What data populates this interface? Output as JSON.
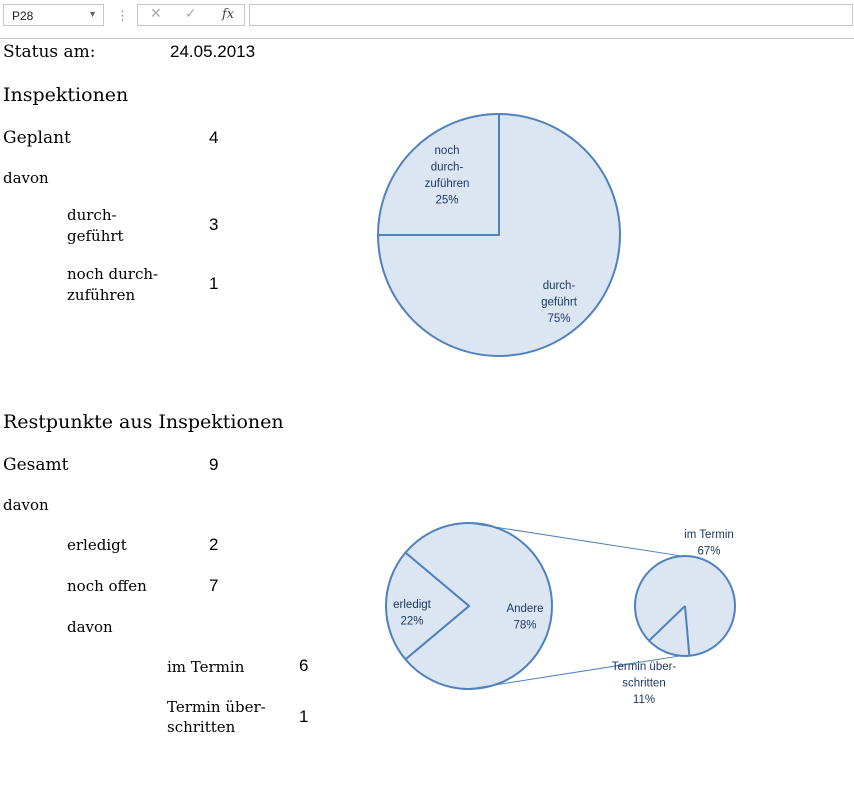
{
  "formula_bar": {
    "cell_ref": "P28",
    "cancel_icon": "✕",
    "enter_icon": "✓",
    "fx_icon": "fx",
    "formula": ""
  },
  "status": {
    "label": "Status am:",
    "date": "24.05.2013"
  },
  "inspektionen": {
    "heading": "Inspektionen",
    "planned_label": "Geplant",
    "planned_value": "4",
    "of_which": "davon",
    "done_label_1": "durch-",
    "done_label_2": "geführt",
    "done_value": "3",
    "open_label_1": "noch durch-",
    "open_label_2": "zuführen",
    "open_value": "1"
  },
  "restpunkte": {
    "heading": "Restpunkte aus Inspektionen",
    "total_label": "Gesamt",
    "total_value": "9",
    "of_which": "davon",
    "done_label": "erledigt",
    "done_value": "2",
    "open_label": "noch offen",
    "open_value": "7",
    "of_which_2": "davon",
    "in_time_label": "im Termin",
    "in_time_value": "6",
    "overdue_label_1": "Termin über-",
    "overdue_label_2": "schritten",
    "overdue_value": "1"
  },
  "colors": {
    "slice_fill": "#dce6f2",
    "slice_stroke": "#4f81bd",
    "label": "#1f3864"
  },
  "chart_data": [
    {
      "type": "pie",
      "slices": [
        {
          "label_lines": [
            "noch",
            "durch-",
            "zuführen"
          ],
          "value": 1,
          "percent_label": "25%"
        },
        {
          "label_lines": [
            "durch-",
            "geführt"
          ],
          "value": 3,
          "percent_label": "75%"
        }
      ]
    },
    {
      "type": "pie",
      "variant": "pie-of-pie",
      "primary": [
        {
          "label": "erledigt",
          "value": 2,
          "percent_label": "22%"
        },
        {
          "label": "Andere",
          "value": 7,
          "percent_label": "78%"
        }
      ],
      "secondary": [
        {
          "label": "im Termin",
          "value": 6,
          "percent_label": "67%"
        },
        {
          "label_lines": [
            "Termin über-",
            "schritten"
          ],
          "value": 1,
          "percent_label": "11%"
        }
      ]
    }
  ]
}
